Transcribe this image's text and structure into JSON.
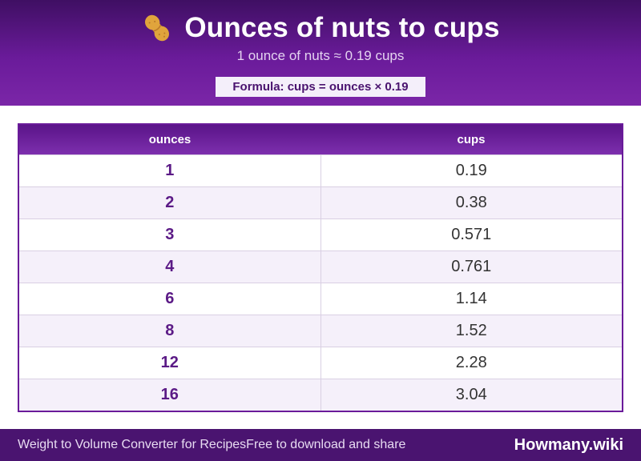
{
  "header": {
    "title": "Ounces of nuts to cups",
    "icon": "peanut-icon",
    "subtitle": "1 ounce of nuts ≈ 0.19 cups",
    "formula": "Formula: cups = ounces × 0.19"
  },
  "table": {
    "columns": [
      "ounces",
      "cups"
    ],
    "rows": [
      {
        "ounces": "1",
        "cups": "0.19"
      },
      {
        "ounces": "2",
        "cups": "0.38"
      },
      {
        "ounces": "3",
        "cups": "0.571"
      },
      {
        "ounces": "4",
        "cups": "0.761"
      },
      {
        "ounces": "6",
        "cups": "1.14"
      },
      {
        "ounces": "8",
        "cups": "1.52"
      },
      {
        "ounces": "12",
        "cups": "2.28"
      },
      {
        "ounces": "16",
        "cups": "3.04"
      }
    ]
  },
  "footer": {
    "left": "Weight to Volume Converter for Recipes",
    "middle": "Free to download and share",
    "brand": "Howmany.wiki"
  },
  "colors": {
    "header_dark": "#3f0f63",
    "accent_purple": "#6a1b9a",
    "row_alt": "#f5f0fa",
    "footer_bg": "#4a1470"
  }
}
